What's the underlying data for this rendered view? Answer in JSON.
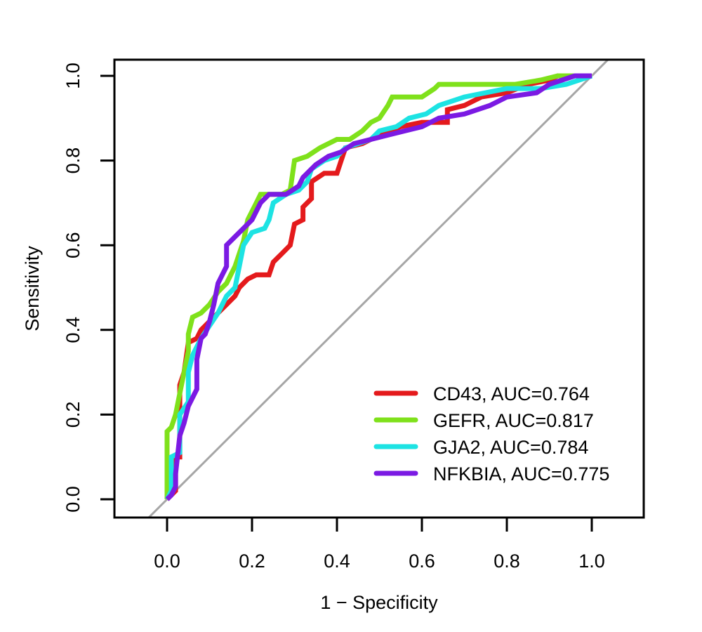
{
  "chart_data": {
    "type": "line",
    "title": "",
    "xlabel": "1 − Specificity",
    "ylabel": "Sensitivity",
    "xlim": [
      -0.125,
      1.125
    ],
    "ylim": [
      -0.04,
      1.04
    ],
    "xticks": [
      0.0,
      0.2,
      0.4,
      0.6,
      0.8,
      1.0
    ],
    "xtick_labels": [
      "0.0",
      "0.2",
      "0.4",
      "0.6",
      "0.8",
      "1.0"
    ],
    "yticks": [
      0.0,
      0.2,
      0.4,
      0.6,
      0.8,
      1.0
    ],
    "ytick_labels": [
      "0.0",
      "0.2",
      "0.4",
      "0.6",
      "0.8",
      "1.0"
    ],
    "grid": false,
    "legend_position": "bottom-right",
    "reference_line": {
      "name": "chance-diagonal",
      "color": "#a6a6a6",
      "from": [
        0,
        0
      ],
      "to": [
        1,
        1
      ]
    },
    "series": [
      {
        "name": "CD43",
        "legend_label": "CD43, AUC=0.764",
        "auc": 0.764,
        "color": "#e41a1c",
        "points": [
          [
            0,
            0
          ],
          [
            0.02,
            0.02
          ],
          [
            0.02,
            0.1
          ],
          [
            0.03,
            0.1
          ],
          [
            0.03,
            0.27
          ],
          [
            0.04,
            0.3
          ],
          [
            0.05,
            0.37
          ],
          [
            0.07,
            0.38
          ],
          [
            0.08,
            0.4
          ],
          [
            0.1,
            0.42
          ],
          [
            0.12,
            0.44
          ],
          [
            0.14,
            0.46
          ],
          [
            0.16,
            0.48
          ],
          [
            0.17,
            0.5
          ],
          [
            0.19,
            0.52
          ],
          [
            0.21,
            0.53
          ],
          [
            0.24,
            0.53
          ],
          [
            0.25,
            0.56
          ],
          [
            0.27,
            0.58
          ],
          [
            0.29,
            0.6
          ],
          [
            0.3,
            0.65
          ],
          [
            0.32,
            0.66
          ],
          [
            0.32,
            0.69
          ],
          [
            0.34,
            0.71
          ],
          [
            0.34,
            0.75
          ],
          [
            0.37,
            0.77
          ],
          [
            0.4,
            0.77
          ],
          [
            0.41,
            0.8
          ],
          [
            0.42,
            0.83
          ],
          [
            0.46,
            0.84
          ],
          [
            0.5,
            0.86
          ],
          [
            0.55,
            0.88
          ],
          [
            0.6,
            0.89
          ],
          [
            0.66,
            0.89
          ],
          [
            0.66,
            0.92
          ],
          [
            0.7,
            0.93
          ],
          [
            0.74,
            0.95
          ],
          [
            0.8,
            0.96
          ],
          [
            0.85,
            0.98
          ],
          [
            0.9,
            0.99
          ],
          [
            0.92,
            1.0
          ],
          [
            1,
            1
          ]
        ]
      },
      {
        "name": "GEFR",
        "legend_label": "GEFR, AUC=0.817",
        "auc": 0.817,
        "color": "#7fe11b",
        "points": [
          [
            0,
            0
          ],
          [
            0,
            0.16
          ],
          [
            0.01,
            0.17
          ],
          [
            0.02,
            0.2
          ],
          [
            0.03,
            0.25
          ],
          [
            0.04,
            0.3
          ],
          [
            0.05,
            0.35
          ],
          [
            0.05,
            0.39
          ],
          [
            0.06,
            0.43
          ],
          [
            0.08,
            0.44
          ],
          [
            0.1,
            0.46
          ],
          [
            0.12,
            0.49
          ],
          [
            0.14,
            0.51
          ],
          [
            0.16,
            0.55
          ],
          [
            0.18,
            0.61
          ],
          [
            0.19,
            0.66
          ],
          [
            0.21,
            0.7
          ],
          [
            0.22,
            0.72
          ],
          [
            0.27,
            0.72
          ],
          [
            0.29,
            0.73
          ],
          [
            0.3,
            0.8
          ],
          [
            0.33,
            0.81
          ],
          [
            0.36,
            0.83
          ],
          [
            0.4,
            0.85
          ],
          [
            0.43,
            0.85
          ],
          [
            0.46,
            0.87
          ],
          [
            0.48,
            0.89
          ],
          [
            0.5,
            0.9
          ],
          [
            0.52,
            0.93
          ],
          [
            0.53,
            0.95
          ],
          [
            0.6,
            0.95
          ],
          [
            0.63,
            0.97
          ],
          [
            0.64,
            0.98
          ],
          [
            0.82,
            0.98
          ],
          [
            0.88,
            0.99
          ],
          [
            0.92,
            1.0
          ],
          [
            1,
            1
          ]
        ]
      },
      {
        "name": "GJA2",
        "legend_label": "GJA2, AUC=0.784",
        "auc": 0.784,
        "color": "#1de3e3",
        "points": [
          [
            0,
            0
          ],
          [
            0.01,
            0.02
          ],
          [
            0.01,
            0.1
          ],
          [
            0.03,
            0.11
          ],
          [
            0.03,
            0.2
          ],
          [
            0.05,
            0.23
          ],
          [
            0.05,
            0.3
          ],
          [
            0.06,
            0.34
          ],
          [
            0.08,
            0.38
          ],
          [
            0.1,
            0.41
          ],
          [
            0.12,
            0.44
          ],
          [
            0.14,
            0.48
          ],
          [
            0.16,
            0.5
          ],
          [
            0.17,
            0.55
          ],
          [
            0.18,
            0.6
          ],
          [
            0.2,
            0.63
          ],
          [
            0.23,
            0.64
          ],
          [
            0.24,
            0.66
          ],
          [
            0.25,
            0.7
          ],
          [
            0.28,
            0.72
          ],
          [
            0.31,
            0.73
          ],
          [
            0.33,
            0.75
          ],
          [
            0.34,
            0.78
          ],
          [
            0.37,
            0.8
          ],
          [
            0.4,
            0.81
          ],
          [
            0.42,
            0.83
          ],
          [
            0.48,
            0.85
          ],
          [
            0.5,
            0.87
          ],
          [
            0.54,
            0.88
          ],
          [
            0.57,
            0.9
          ],
          [
            0.61,
            0.91
          ],
          [
            0.64,
            0.93
          ],
          [
            0.7,
            0.95
          ],
          [
            0.8,
            0.97
          ],
          [
            0.88,
            0.97
          ],
          [
            0.94,
            0.98
          ],
          [
            1,
            1
          ]
        ]
      },
      {
        "name": "NFKBIA",
        "legend_label": "NFKBIA, AUC=0.775",
        "auc": 0.775,
        "color": "#7b1ae3",
        "points": [
          [
            0,
            0
          ],
          [
            0.01,
            0.01
          ],
          [
            0.02,
            0.03
          ],
          [
            0.02,
            0.06
          ],
          [
            0.03,
            0.15
          ],
          [
            0.04,
            0.18
          ],
          [
            0.05,
            0.22
          ],
          [
            0.06,
            0.24
          ],
          [
            0.07,
            0.26
          ],
          [
            0.07,
            0.33
          ],
          [
            0.08,
            0.38
          ],
          [
            0.09,
            0.39
          ],
          [
            0.1,
            0.42
          ],
          [
            0.11,
            0.46
          ],
          [
            0.12,
            0.51
          ],
          [
            0.13,
            0.53
          ],
          [
            0.14,
            0.55
          ],
          [
            0.14,
            0.6
          ],
          [
            0.16,
            0.62
          ],
          [
            0.18,
            0.64
          ],
          [
            0.2,
            0.66
          ],
          [
            0.22,
            0.7
          ],
          [
            0.24,
            0.72
          ],
          [
            0.28,
            0.72
          ],
          [
            0.31,
            0.74
          ],
          [
            0.32,
            0.76
          ],
          [
            0.35,
            0.79
          ],
          [
            0.38,
            0.81
          ],
          [
            0.41,
            0.82
          ],
          [
            0.44,
            0.84
          ],
          [
            0.48,
            0.85
          ],
          [
            0.52,
            0.86
          ],
          [
            0.56,
            0.87
          ],
          [
            0.6,
            0.88
          ],
          [
            0.64,
            0.9
          ],
          [
            0.7,
            0.91
          ],
          [
            0.76,
            0.93
          ],
          [
            0.8,
            0.95
          ],
          [
            0.87,
            0.96
          ],
          [
            0.9,
            0.98
          ],
          [
            0.96,
            1.0
          ],
          [
            1,
            1
          ]
        ]
      }
    ]
  }
}
